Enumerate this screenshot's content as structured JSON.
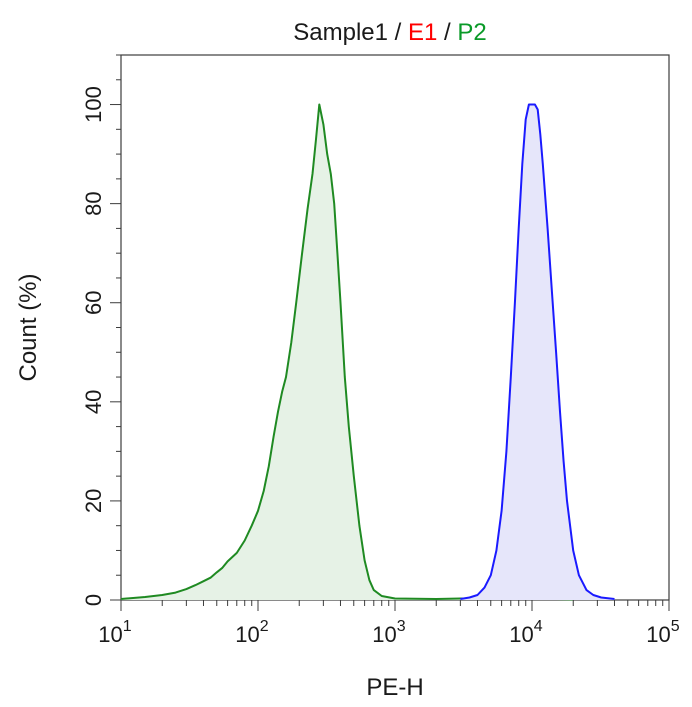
{
  "chart_data": {
    "type": "area",
    "title_parts": [
      {
        "text": "Sample1",
        "color": "#1a1a1a"
      },
      {
        "text": " / ",
        "color": "#1a1a1a"
      },
      {
        "text": "E1",
        "color": "#ff0000"
      },
      {
        "text": " / ",
        "color": "#1a1a1a"
      },
      {
        "text": "P2",
        "color": "#0a9a28"
      }
    ],
    "xlabel": "PE-H",
    "ylabel": "Count  (%)",
    "xscale": "log",
    "xlim": [
      10,
      100000
    ],
    "ylim": [
      0,
      110
    ],
    "x_ticks": [
      {
        "base": "10",
        "exp": "1",
        "value": 10
      },
      {
        "base": "10",
        "exp": "2",
        "value": 100
      },
      {
        "base": "10",
        "exp": "3",
        "value": 1000
      },
      {
        "base": "10",
        "exp": "4",
        "value": 10000
      },
      {
        "base": "10",
        "exp": "5",
        "value": 100000
      }
    ],
    "y_ticks": [
      {
        "label": "0",
        "value": 0
      },
      {
        "label": "20",
        "value": 20
      },
      {
        "label": "40",
        "value": 40
      },
      {
        "label": "60",
        "value": 60
      },
      {
        "label": "80",
        "value": 80
      },
      {
        "label": "100",
        "value": 100
      }
    ],
    "series": [
      {
        "stroke": "#1f8a22",
        "fill": "#e6f2e6",
        "points": [
          [
            10,
            0.2
          ],
          [
            15,
            0.6
          ],
          [
            20,
            1.0
          ],
          [
            25,
            1.5
          ],
          [
            30,
            2.2
          ],
          [
            35,
            3.0
          ],
          [
            40,
            3.8
          ],
          [
            45,
            4.5
          ],
          [
            50,
            5.6
          ],
          [
            55,
            6.5
          ],
          [
            60,
            7.8
          ],
          [
            70,
            9.5
          ],
          [
            80,
            12
          ],
          [
            90,
            15
          ],
          [
            100,
            18
          ],
          [
            110,
            22
          ],
          [
            120,
            27
          ],
          [
            130,
            33
          ],
          [
            140,
            38
          ],
          [
            150,
            42
          ],
          [
            160,
            45
          ],
          [
            175,
            52
          ],
          [
            190,
            60
          ],
          [
            210,
            70
          ],
          [
            230,
            79
          ],
          [
            250,
            86
          ],
          [
            265,
            93
          ],
          [
            280,
            100
          ],
          [
            300,
            96
          ],
          [
            320,
            90
          ],
          [
            340,
            86
          ],
          [
            360,
            80
          ],
          [
            380,
            70
          ],
          [
            400,
            60
          ],
          [
            430,
            45
          ],
          [
            460,
            35
          ],
          [
            500,
            25
          ],
          [
            550,
            15
          ],
          [
            600,
            8
          ],
          [
            650,
            4
          ],
          [
            700,
            2
          ],
          [
            800,
            0.8
          ],
          [
            1000,
            0.3
          ],
          [
            2000,
            0.2
          ],
          [
            3000,
            0.3
          ],
          [
            5000,
            0.3
          ],
          [
            7000,
            0.2
          ],
          [
            10000,
            0.3
          ],
          [
            15000,
            0.2
          ],
          [
            20000,
            0.1
          ]
        ]
      },
      {
        "stroke": "#1a1aff",
        "fill": "#e6e6fa",
        "points": [
          [
            3000,
            0.2
          ],
          [
            3500,
            0.5
          ],
          [
            4000,
            1.0
          ],
          [
            4500,
            2.5
          ],
          [
            5000,
            5
          ],
          [
            5500,
            10
          ],
          [
            6000,
            18
          ],
          [
            6500,
            30
          ],
          [
            7000,
            45
          ],
          [
            7500,
            60
          ],
          [
            8000,
            75
          ],
          [
            8500,
            88
          ],
          [
            9000,
            97
          ],
          [
            9500,
            100
          ],
          [
            10000,
            100
          ],
          [
            10500,
            100
          ],
          [
            11000,
            99
          ],
          [
            11500,
            94
          ],
          [
            12000,
            88
          ],
          [
            13000,
            75
          ],
          [
            14000,
            62
          ],
          [
            15000,
            50
          ],
          [
            16000,
            38
          ],
          [
            17000,
            28
          ],
          [
            18000,
            20
          ],
          [
            20000,
            10
          ],
          [
            22000,
            5
          ],
          [
            25000,
            2
          ],
          [
            28000,
            1
          ],
          [
            32000,
            0.5
          ],
          [
            40000,
            0.2
          ]
        ]
      }
    ],
    "grid": false,
    "legend": "none"
  }
}
